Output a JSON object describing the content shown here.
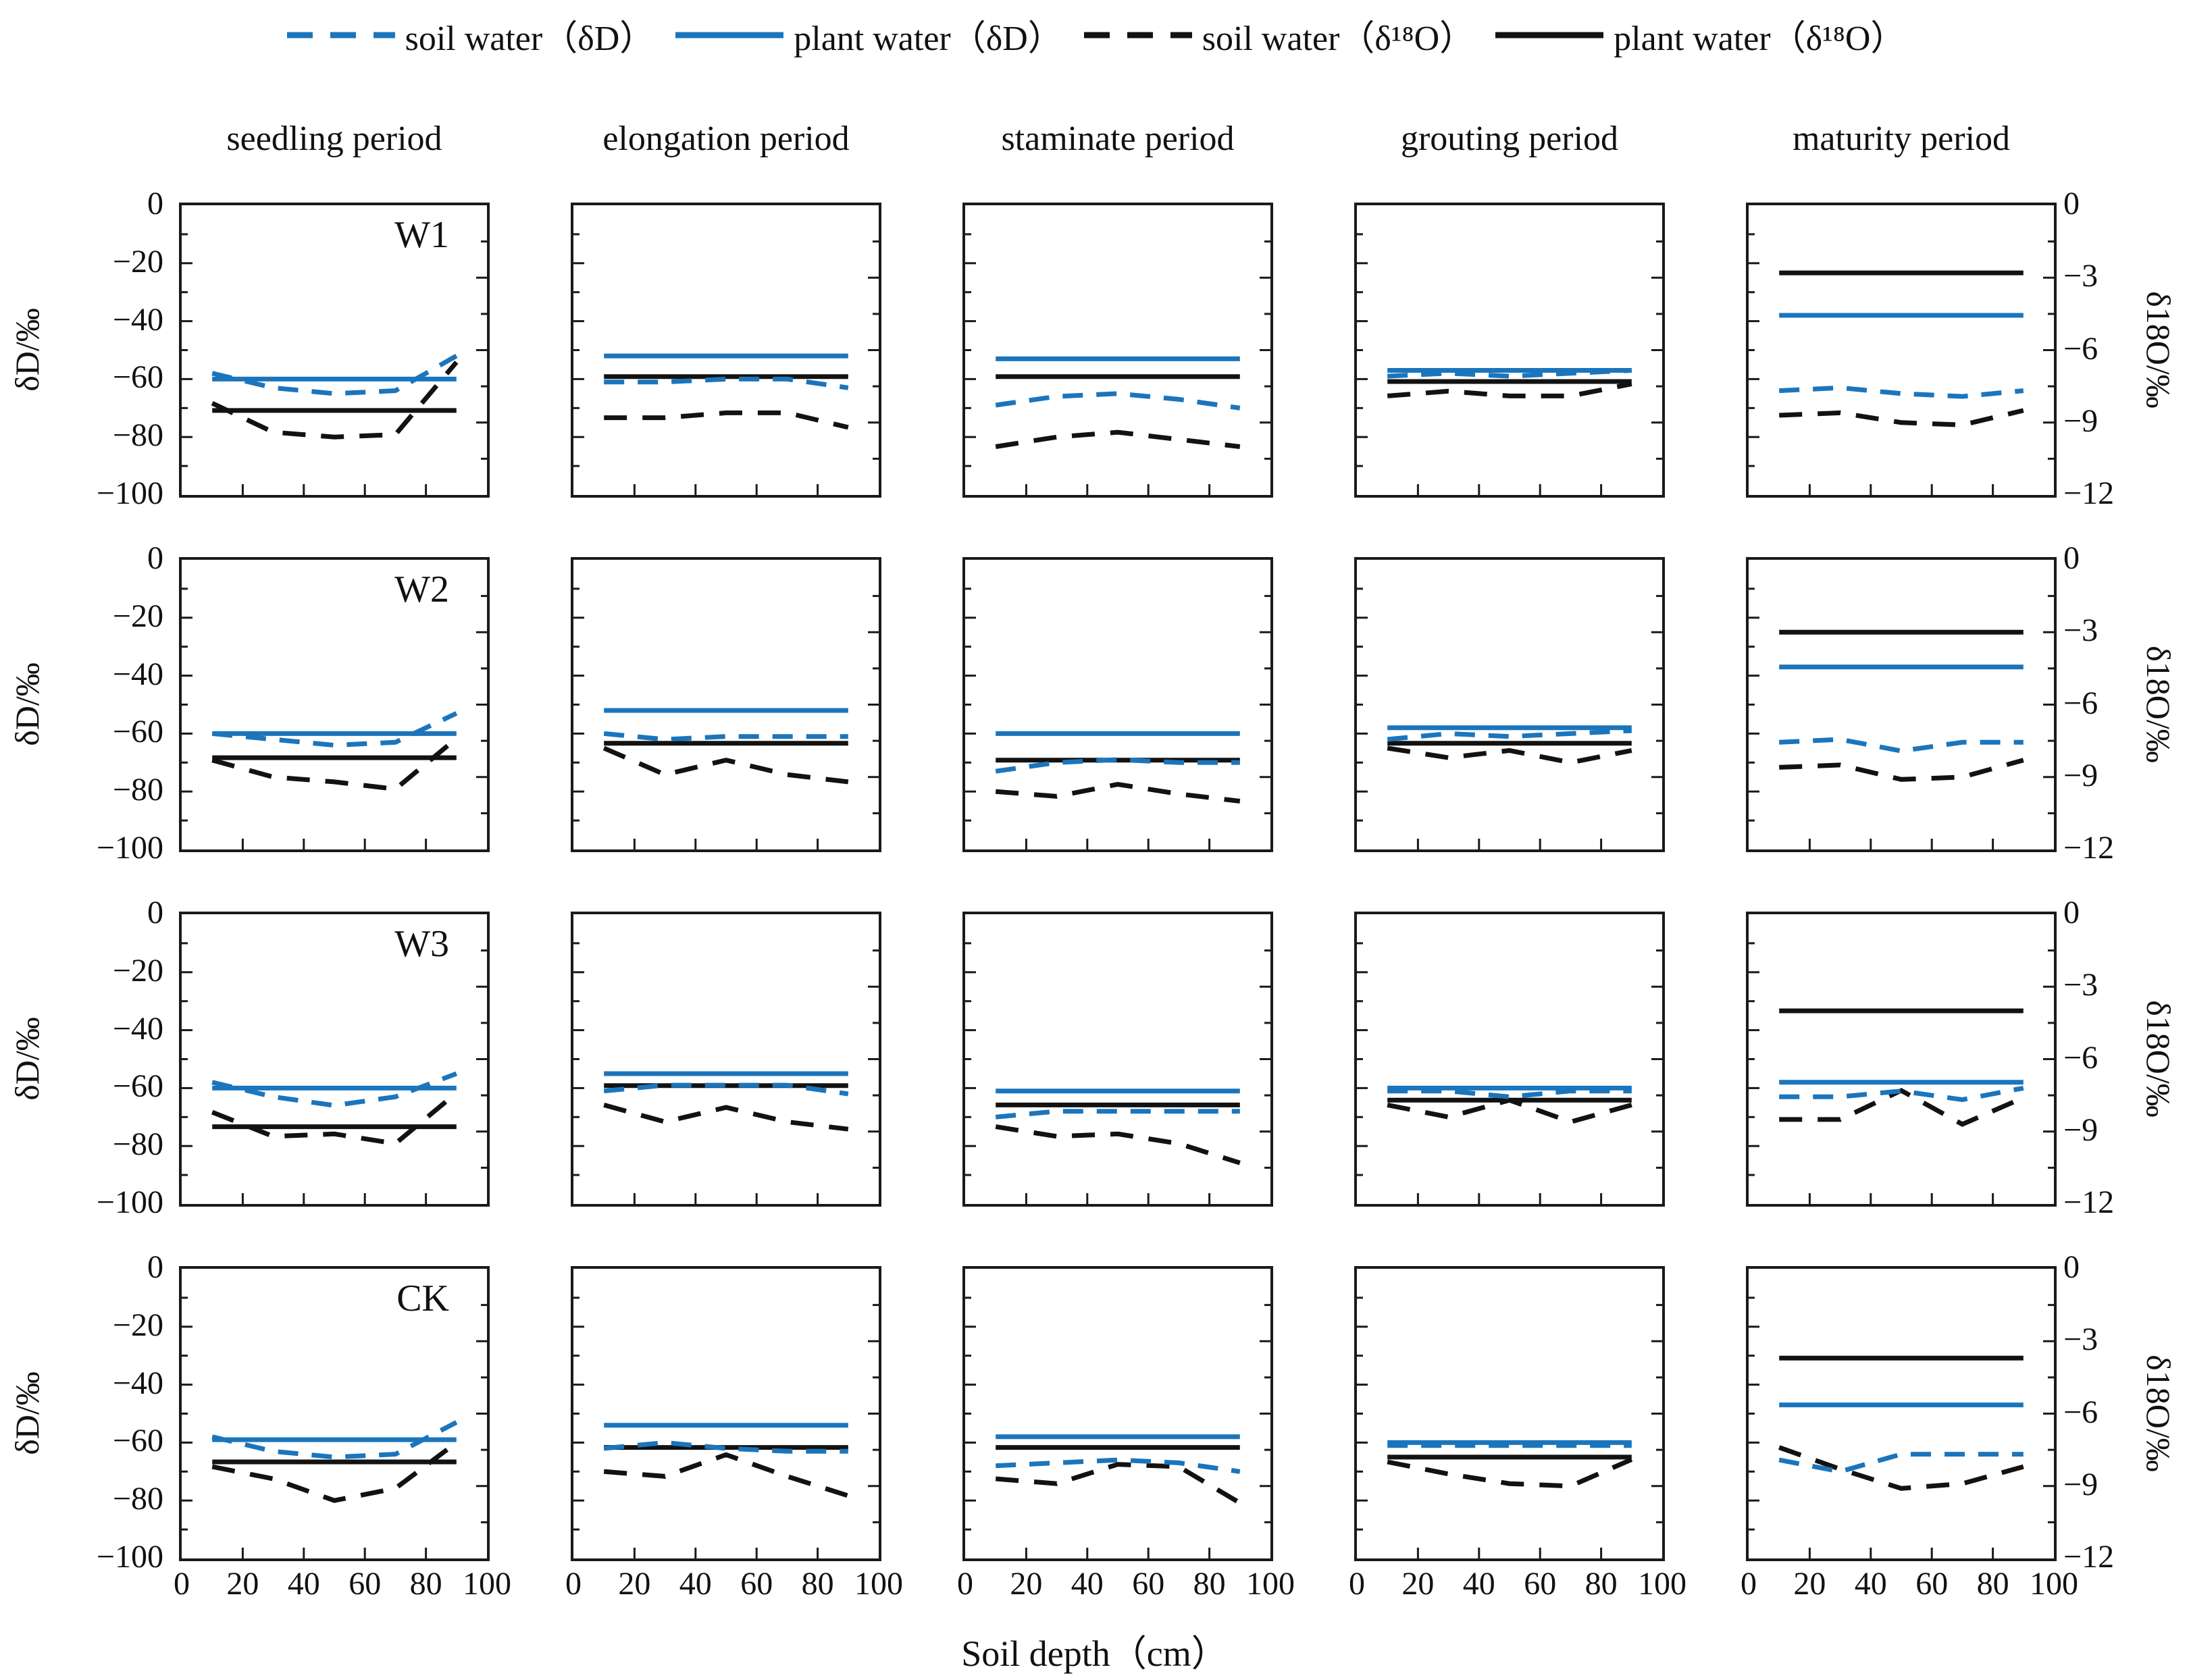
{
  "chart_data": {
    "type": "line",
    "x": [
      10,
      30,
      50,
      70,
      90
    ],
    "x_axis": {
      "label": "Soil depth（cm）",
      "ticks": [
        0,
        20,
        40,
        60,
        80,
        100
      ],
      "range": [
        0,
        100
      ]
    },
    "left_axis": {
      "label": "δD/‰",
      "ticks": [
        0,
        -20,
        -40,
        -60,
        -80,
        -100
      ],
      "range": [
        0,
        -100
      ]
    },
    "right_axis": {
      "label": "δ18O/‰",
      "ticks": [
        0,
        -3,
        -6,
        -9,
        -12
      ],
      "range": [
        0,
        -12
      ]
    },
    "columns": [
      "seedling period",
      "elongation period",
      "staminate period",
      "grouting period",
      "maturity period"
    ],
    "rows": [
      "W1",
      "W2",
      "W3",
      "CK"
    ],
    "series_defs": [
      {
        "key": "soil_water_dD",
        "name": "soil water（δD）",
        "color": "#1b75bc",
        "dash": true,
        "axis": "left"
      },
      {
        "key": "plant_water_dD",
        "name": "plant water（δD）",
        "color": "#1b75bc",
        "dash": false,
        "axis": "left"
      },
      {
        "key": "soil_water_d18O",
        "name": "soil water（δ¹⁸O）",
        "color": "#121212",
        "dash": true,
        "axis": "right"
      },
      {
        "key": "plant_water_d18O",
        "name": "plant water（δ¹⁸O）",
        "color": "#121212",
        "dash": false,
        "axis": "right"
      }
    ],
    "panels": [
      {
        "label": "W1",
        "cells": [
          {
            "soil_water_dD": [
              -58,
              -63,
              -65,
              -64,
              -52
            ],
            "plant_water_dD": -60,
            "soil_water_d18O": [
              -8.2,
              -9.4,
              -9.6,
              -9.5,
              -6.5
            ],
            "plant_water_d18O": -8.5
          },
          {
            "soil_water_dD": [
              -61,
              -61,
              -60,
              -60,
              -63
            ],
            "plant_water_dD": -52,
            "soil_water_d18O": [
              -8.8,
              -8.8,
              -8.6,
              -8.6,
              -9.2
            ],
            "plant_water_d18O": -7.1
          },
          {
            "soil_water_dD": [
              -69,
              -66,
              -65,
              -67,
              -70
            ],
            "plant_water_dD": -53,
            "soil_water_d18O": [
              -10.0,
              -9.6,
              -9.4,
              -9.7,
              -10.0
            ],
            "plant_water_d18O": -7.1
          },
          {
            "soil_water_dD": [
              -59,
              -58,
              -59,
              -58,
              -57
            ],
            "plant_water_dD": -57,
            "soil_water_d18O": [
              -7.9,
              -7.7,
              -7.9,
              -7.9,
              -7.4
            ],
            "plant_water_d18O": -7.3
          },
          {
            "soil_water_dD": [
              -64,
              -63,
              -65,
              -66,
              -64
            ],
            "plant_water_dD": -38,
            "soil_water_d18O": [
              -8.7,
              -8.6,
              -9.0,
              -9.1,
              -8.5
            ],
            "plant_water_d18O": -2.8
          }
        ]
      },
      {
        "label": "W2",
        "cells": [
          {
            "soil_water_dD": [
              -60,
              -62,
              -64,
              -63,
              -53
            ],
            "plant_water_dD": -60,
            "soil_water_d18O": [
              -8.3,
              -9.0,
              -9.2,
              -9.5,
              -7.4
            ],
            "plant_water_d18O": -8.2
          },
          {
            "soil_water_dD": [
              -60,
              -62,
              -61,
              -61,
              -61
            ],
            "plant_water_dD": -52,
            "soil_water_d18O": [
              -7.8,
              -8.9,
              -8.3,
              -8.9,
              -9.2
            ],
            "plant_water_d18O": -7.6
          },
          {
            "soil_water_dD": [
              -73,
              -70,
              -69,
              -70,
              -70
            ],
            "plant_water_dD": -60,
            "soil_water_d18O": [
              -9.6,
              -9.8,
              -9.3,
              -9.7,
              -10.0
            ],
            "plant_water_d18O": -8.3
          },
          {
            "soil_water_dD": [
              -62,
              -60,
              -61,
              -60,
              -59
            ],
            "plant_water_dD": -58,
            "soil_water_d18O": [
              -7.8,
              -8.2,
              -7.9,
              -8.4,
              -7.9
            ],
            "plant_water_d18O": -7.6
          },
          {
            "soil_water_dD": [
              -63,
              -62,
              -66,
              -63,
              -63
            ],
            "plant_water_dD": -37,
            "soil_water_d18O": [
              -8.6,
              -8.5,
              -9.1,
              -9.0,
              -8.3
            ],
            "plant_water_d18O": -3.0
          }
        ]
      },
      {
        "label": "W3",
        "cells": [
          {
            "soil_water_dD": [
              -58,
              -63,
              -66,
              -63,
              -55
            ],
            "plant_water_dD": -60,
            "soil_water_d18O": [
              -8.2,
              -9.2,
              -9.1,
              -9.5,
              -7.4
            ],
            "plant_water_d18O": -8.8
          },
          {
            "soil_water_dD": [
              -61,
              -59,
              -59,
              -59,
              -62
            ],
            "plant_water_dD": -55,
            "soil_water_d18O": [
              -7.9,
              -8.6,
              -8.0,
              -8.6,
              -8.9
            ],
            "plant_water_d18O": -7.1
          },
          {
            "soil_water_dD": [
              -70,
              -68,
              -68,
              -68,
              -68
            ],
            "plant_water_dD": -61,
            "soil_water_d18O": [
              -8.8,
              -9.2,
              -9.1,
              -9.5,
              -10.3
            ],
            "plant_water_d18O": -7.9
          },
          {
            "soil_water_dD": [
              -61,
              -61,
              -63,
              -61,
              -61
            ],
            "plant_water_dD": -60,
            "soil_water_d18O": [
              -7.9,
              -8.4,
              -7.7,
              -8.6,
              -7.9
            ],
            "plant_water_d18O": -7.7
          },
          {
            "soil_water_dD": [
              -63,
              -63,
              -61,
              -64,
              -60
            ],
            "plant_water_dD": -58,
            "soil_water_d18O": [
              -8.5,
              -8.5,
              -7.3,
              -8.7,
              -7.6
            ],
            "plant_water_d18O": -4.0
          }
        ]
      },
      {
        "label": "CK",
        "cells": [
          {
            "soil_water_dD": [
              -58,
              -63,
              -65,
              -64,
              -53
            ],
            "plant_water_dD": -59,
            "soil_water_d18O": [
              -8.2,
              -8.7,
              -9.6,
              -9.1,
              -7.2
            ],
            "plant_water_d18O": -8.0
          },
          {
            "soil_water_dD": [
              -62,
              -60,
              -62,
              -63,
              -63
            ],
            "plant_water_dD": -54,
            "soil_water_d18O": [
              -8.4,
              -8.6,
              -7.7,
              -8.6,
              -9.4
            ],
            "plant_water_d18O": -7.4
          },
          {
            "soil_water_dD": [
              -68,
              -67,
              -66,
              -67,
              -70
            ],
            "plant_water_dD": -58,
            "soil_water_d18O": [
              -8.7,
              -8.9,
              -8.1,
              -8.2,
              -9.7
            ],
            "plant_water_d18O": -7.4
          },
          {
            "soil_water_dD": [
              -61,
              -61,
              -61,
              -61,
              -61
            ],
            "plant_water_dD": -60,
            "soil_water_d18O": [
              -8.0,
              -8.5,
              -8.9,
              -9.0,
              -7.9
            ],
            "plant_water_d18O": -7.8
          },
          {
            "soil_water_dD": [
              -66,
              -70,
              -64,
              -64,
              -64
            ],
            "plant_water_dD": -47,
            "soil_water_d18O": [
              -7.4,
              -8.3,
              -9.1,
              -8.9,
              -8.2
            ],
            "plant_water_d18O": -3.7
          }
        ]
      }
    ]
  }
}
